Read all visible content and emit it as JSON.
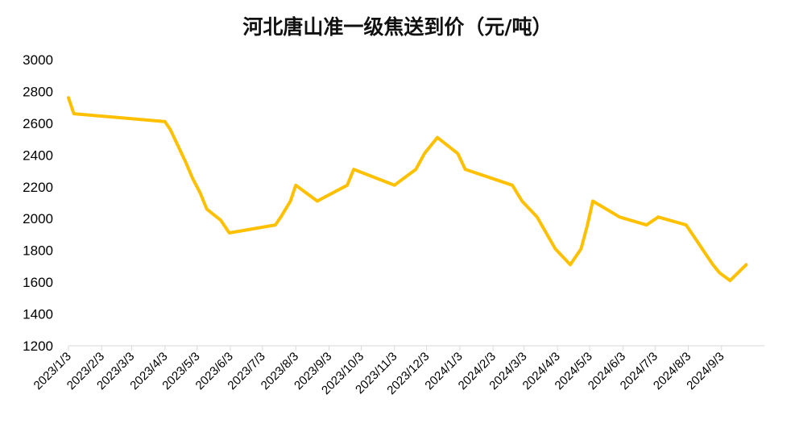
{
  "chart_data": {
    "type": "line",
    "title": "河北唐山准一级焦送到价（元/吨）",
    "xlabel": "",
    "ylabel": "",
    "ylim": [
      1200,
      3000
    ],
    "yticks": [
      1200,
      1400,
      1600,
      1800,
      2000,
      2200,
      2400,
      2600,
      2800,
      3000
    ],
    "xlim": [
      "2023-01-03",
      "2024-10-13"
    ],
    "xticks": [
      "2023-01-03",
      "2023-02-03",
      "2023-03-03",
      "2023-04-03",
      "2023-05-03",
      "2023-06-03",
      "2023-07-03",
      "2023-08-03",
      "2023-09-03",
      "2023-10-03",
      "2023-11-03",
      "2023-12-03",
      "2024-01-03",
      "2024-02-03",
      "2024-03-03",
      "2024-04-03",
      "2024-05-03",
      "2024-06-03",
      "2024-07-03",
      "2024-08-03",
      "2024-09-03"
    ],
    "xtick_labels": [
      "2023/1/3",
      "2023/2/3",
      "2023/3/3",
      "2023/4/3",
      "2023/5/3",
      "2023/6/3",
      "2023/7/3",
      "2023/8/3",
      "2023/9/3",
      "2023/10/3",
      "2023/11/3",
      "2023/12/3",
      "2024/1/3",
      "2024/2/3",
      "2024/3/3",
      "2024/4/3",
      "2024/5/3",
      "2024/6/3",
      "2024/7/3",
      "2024/8/3",
      "2024/9/3"
    ],
    "grid": false,
    "legend": "none",
    "line_color": "#FFC000",
    "series": [
      {
        "x": [
          "2023-01-03",
          "2023-01-08",
          "2023-04-03",
          "2023-04-08",
          "2023-04-15",
          "2023-04-22",
          "2023-04-29",
          "2023-05-06",
          "2023-05-12",
          "2023-05-25",
          "2023-06-02",
          "2023-07-15",
          "2023-07-20",
          "2023-07-29",
          "2023-08-03",
          "2023-08-23",
          "2023-09-20",
          "2023-09-26",
          "2023-11-03",
          "2023-11-23",
          "2023-12-01",
          "2023-12-13",
          "2024-01-01",
          "2024-01-08",
          "2024-02-21",
          "2024-03-01",
          "2024-03-15",
          "2024-04-01",
          "2024-04-15",
          "2024-04-25",
          "2024-05-01",
          "2024-05-06",
          "2024-05-31",
          "2024-06-25",
          "2024-07-06",
          "2024-08-01",
          "2024-08-06",
          "2024-08-11",
          "2024-08-21",
          "2024-08-26",
          "2024-09-01",
          "2024-09-11",
          "2024-09-26"
        ],
        "values": [
          2760,
          2660,
          2610,
          2560,
          2460,
          2360,
          2250,
          2160,
          2060,
          1990,
          1910,
          1960,
          2010,
          2110,
          2210,
          2110,
          2210,
          2310,
          2210,
          2310,
          2410,
          2510,
          2410,
          2310,
          2210,
          2110,
          2010,
          1810,
          1710,
          1810,
          1960,
          2110,
          2010,
          1960,
          2010,
          1960,
          1910,
          1860,
          1760,
          1710,
          1660,
          1610,
          1710
        ]
      }
    ]
  }
}
